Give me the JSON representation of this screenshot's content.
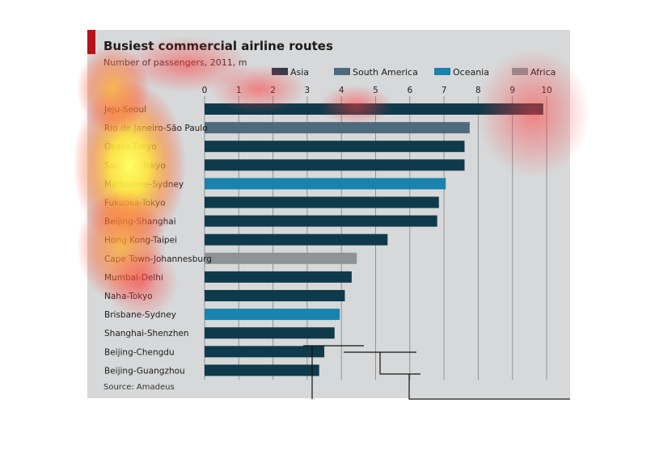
{
  "chart_data": {
    "type": "bar",
    "orientation": "horizontal",
    "title": "Busiest commercial airline routes",
    "subtitle": "Number of passengers, 2011, m",
    "source": "Source: Amadeus",
    "xlim": [
      0,
      10
    ],
    "xticks": [
      "0",
      "1",
      "2",
      "3",
      "4",
      "5",
      "6",
      "7",
      "8",
      "9",
      "10"
    ],
    "grid": "vertical",
    "legend_position": "top",
    "legend": [
      {
        "name": "Asia",
        "color": "#2d3a4a"
      },
      {
        "name": "South America",
        "color": "#4d6a7e"
      },
      {
        "name": "Oceania",
        "color": "#1a82ae"
      },
      {
        "name": "Africa",
        "color": "#8e9496"
      }
    ],
    "categories": [
      "Jeju-Seoul",
      "Rio de Janeiro-São Paulo",
      "Osaka-Tokyo",
      "Sapporo-Tokyo",
      "Melbourne-Sydney",
      "Fukuoka-Tokyo",
      "Beijing-Shanghai",
      "Hong Kong-Taipei",
      "Cape Town-Johannesburg",
      "Mumbai-Delhi",
      "Naha-Tokyo",
      "Brisbane-Sydney",
      "Shanghai-Shenzhen",
      "Beijing-Chengdu",
      "Beijing-Guangzhou"
    ],
    "values": [
      9.9,
      7.75,
      7.6,
      7.6,
      7.05,
      6.85,
      6.8,
      5.35,
      4.45,
      4.3,
      4.1,
      3.95,
      3.8,
      3.5,
      3.35
    ],
    "regions": [
      "Asia",
      "South America",
      "Asia",
      "Asia",
      "Oceania",
      "Asia",
      "Asia",
      "Asia",
      "Africa",
      "Asia",
      "Asia",
      "Oceania",
      "Asia",
      "Asia",
      "Asia"
    ]
  },
  "colors": {
    "asia_bar": "#0f3a4c",
    "south_america_bar": "#4d6a7e",
    "oceania_bar": "#1a82ae",
    "africa_bar": "#8e9496",
    "accent": "#b5121b"
  }
}
